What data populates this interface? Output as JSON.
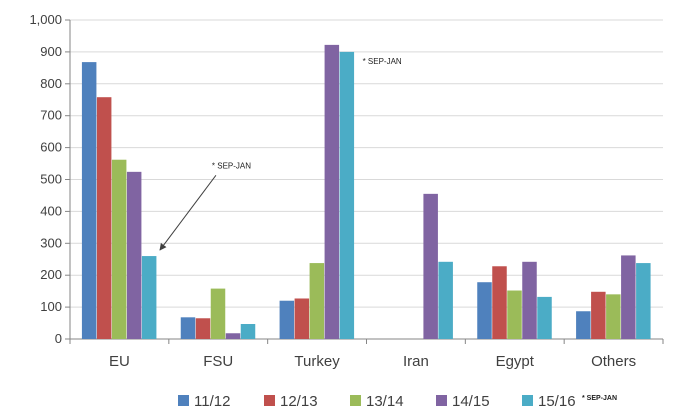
{
  "chart_data": {
    "type": "bar",
    "categories": [
      "EU",
      "FSU",
      "Turkey",
      "Iran",
      "Egypt",
      "Others"
    ],
    "series": [
      {
        "name": "11/12",
        "color": "#4F81BD",
        "values": [
          868,
          68,
          120,
          null,
          178,
          87
        ]
      },
      {
        "name": "12/13",
        "color": "#C0504D",
        "values": [
          758,
          65,
          127,
          null,
          228,
          148
        ]
      },
      {
        "name": "13/14",
        "color": "#9BBB59",
        "values": [
          562,
          158,
          238,
          null,
          152,
          140
        ]
      },
      {
        "name": "14/15",
        "color": "#8064A2",
        "values": [
          524,
          18,
          922,
          455,
          242,
          262
        ]
      },
      {
        "name": "15/16",
        "color": "#4BACC6",
        "values": [
          260,
          47,
          900,
          242,
          132,
          238
        ]
      }
    ],
    "ylim": [
      0,
      1000
    ],
    "yticks": [
      {
        "value": 0,
        "label": "0"
      },
      {
        "value": 100,
        "label": "100"
      },
      {
        "value": 200,
        "label": "200"
      },
      {
        "value": 300,
        "label": "300"
      },
      {
        "value": 400,
        "label": "400"
      },
      {
        "value": 500,
        "label": "500"
      },
      {
        "value": 600,
        "label": "600"
      },
      {
        "value": 700,
        "label": "700"
      },
      {
        "value": 800,
        "label": "800"
      },
      {
        "value": 900,
        "label": "900"
      },
      {
        "value": 1000,
        "label": "1,000"
      }
    ],
    "grid": true,
    "legend_position": "bottom",
    "legend_note": "* SEP-JAN",
    "annotations": [
      {
        "text": "* SEP-JAN",
        "category": "EU",
        "series": "15/16",
        "arrow": true
      },
      {
        "text": "* SEP-JAN",
        "category": "Turkey",
        "series": "15/16",
        "arrow": false
      }
    ]
  }
}
